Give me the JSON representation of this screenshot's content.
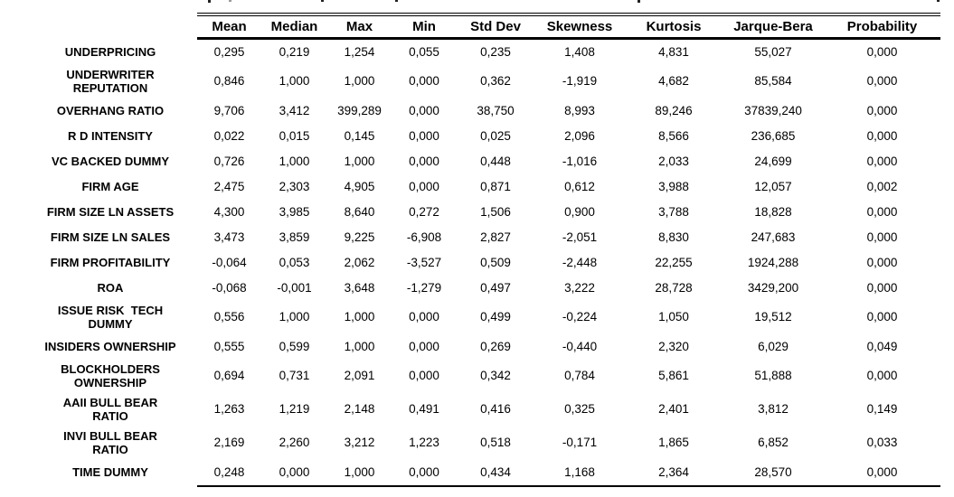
{
  "table": {
    "columns": [
      "Mean",
      "Median",
      "Max",
      "Min",
      "Std Dev",
      "Skewness",
      "Kurtosis",
      "Jarque-Bera",
      "Probability"
    ],
    "rows": [
      {
        "label": "UNDERPRICING",
        "values": [
          "0,295",
          "0,219",
          "1,254",
          "0,055",
          "0,235",
          "1,408",
          "4,831",
          "55,027",
          "0,000"
        ]
      },
      {
        "label": "UNDERWRITER\nREPUTATION",
        "values": [
          "0,846",
          "1,000",
          "1,000",
          "0,000",
          "0,362",
          "-1,919",
          "4,682",
          "85,584",
          "0,000"
        ]
      },
      {
        "label": "OVERHANG RATIO",
        "values": [
          "9,706",
          "3,412",
          "399,289",
          "0,000",
          "38,750",
          "8,993",
          "89,246",
          "37839,240",
          "0,000"
        ]
      },
      {
        "label": "R D INTENSITY",
        "values": [
          "0,022",
          "0,015",
          "0,145",
          "0,000",
          "0,025",
          "2,096",
          "8,566",
          "236,685",
          "0,000"
        ]
      },
      {
        "label": "VC BACKED DUMMY",
        "values": [
          "0,726",
          "1,000",
          "1,000",
          "0,000",
          "0,448",
          "-1,016",
          "2,033",
          "24,699",
          "0,000"
        ]
      },
      {
        "label": "FIRM AGE",
        "values": [
          "2,475",
          "2,303",
          "4,905",
          "0,000",
          "0,871",
          "0,612",
          "3,988",
          "12,057",
          "0,002"
        ]
      },
      {
        "label": "FIRM SIZE LN ASSETS",
        "values": [
          "4,300",
          "3,985",
          "8,640",
          "0,272",
          "1,506",
          "0,900",
          "3,788",
          "18,828",
          "0,000"
        ]
      },
      {
        "label": "FIRM SIZE LN SALES",
        "values": [
          "3,473",
          "3,859",
          "9,225",
          "-6,908",
          "2,827",
          "-2,051",
          "8,830",
          "247,683",
          "0,000"
        ]
      },
      {
        "label": "FIRM PROFITABILITY",
        "values": [
          "-0,064",
          "0,053",
          "2,062",
          "-3,527",
          "0,509",
          "-2,448",
          "22,255",
          "1924,288",
          "0,000"
        ]
      },
      {
        "label": "ROA",
        "values": [
          "-0,068",
          "-0,001",
          "3,648",
          "-1,279",
          "0,497",
          "3,222",
          "28,728",
          "3429,200",
          "0,000"
        ]
      },
      {
        "label": "ISSUE RISK  TECH\nDUMMY",
        "values": [
          "0,556",
          "1,000",
          "1,000",
          "0,000",
          "0,499",
          "-0,224",
          "1,050",
          "19,512",
          "0,000"
        ]
      },
      {
        "label": "INSIDERS OWNERSHIP",
        "values": [
          "0,555",
          "0,599",
          "1,000",
          "0,000",
          "0,269",
          "-0,440",
          "2,320",
          "6,029",
          "0,049"
        ]
      },
      {
        "label": "BLOCKHOLDERS\nOWNERSHIP",
        "values": [
          "0,694",
          "0,731",
          "2,091",
          "0,000",
          "0,342",
          "0,784",
          "5,861",
          "51,888",
          "0,000"
        ]
      },
      {
        "label": "AAII BULL BEAR\nRATIO",
        "values": [
          "1,263",
          "1,219",
          "2,148",
          "0,491",
          "0,416",
          "0,325",
          "2,401",
          "3,812",
          "0,149"
        ]
      },
      {
        "label": "INVI BULL BEAR\nRATIO",
        "values": [
          "2,169",
          "2,260",
          "3,212",
          "1,223",
          "0,518",
          "-0,171",
          "1,865",
          "6,852",
          "0,033"
        ]
      },
      {
        "label": "TIME DUMMY",
        "values": [
          "0,248",
          "0,000",
          "1,000",
          "0,000",
          "0,434",
          "1,168",
          "2,364",
          "28,570",
          "0,000"
        ]
      }
    ]
  }
}
